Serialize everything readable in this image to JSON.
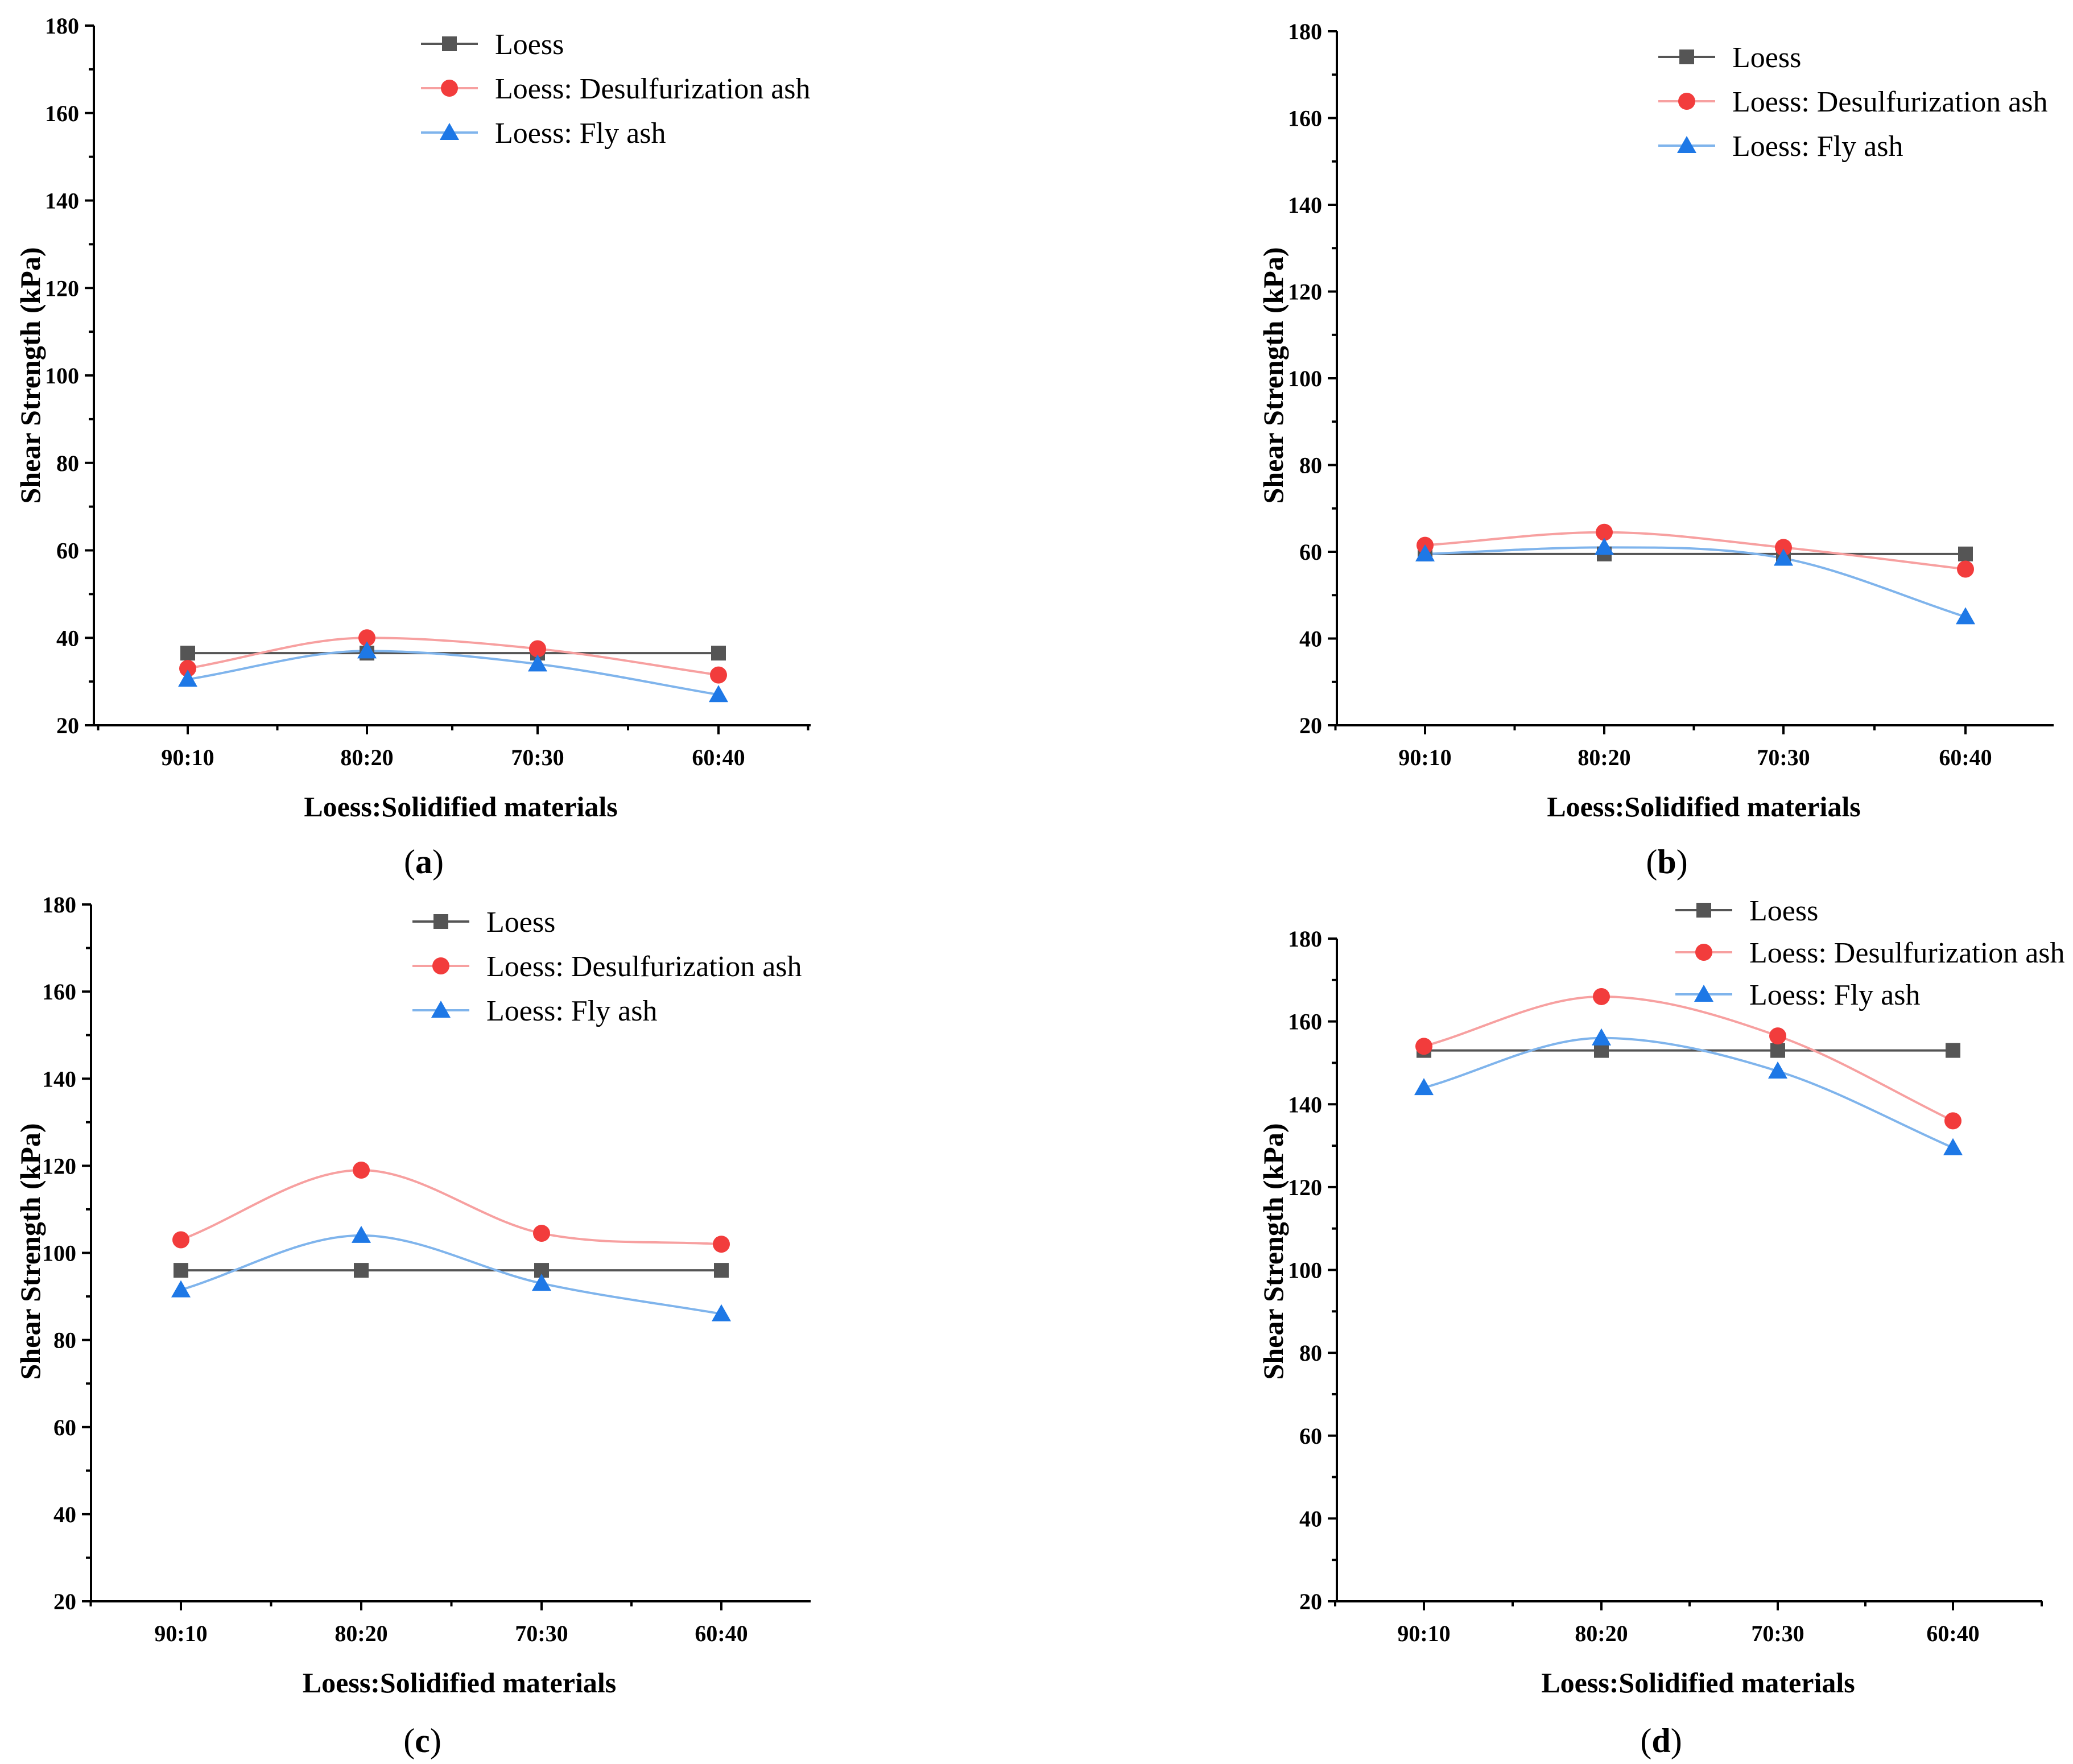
{
  "chart_data": [
    {
      "type": "line",
      "panel_label": "a",
      "categories": [
        "90:10",
        "80:20",
        "70:30",
        "60:40"
      ],
      "xlabel": "Loess:Solidified materials",
      "ylabel": "Shear Strength (kPa)",
      "ylim": [
        20,
        180
      ],
      "yticks": [
        20,
        40,
        60,
        80,
        100,
        120,
        140,
        160,
        180
      ],
      "legend_position": "top-right",
      "series": [
        {
          "name": "Loess",
          "color": "#555555",
          "marker": "square",
          "smooth": false,
          "values": [
            36.5,
            36.5,
            36.5,
            36.5
          ]
        },
        {
          "name": "Loess: Desulfurization ash",
          "color": "#f23c3c",
          "line_color": "#f7a0a0",
          "marker": "circle",
          "smooth": true,
          "values": [
            33,
            40,
            37.5,
            31.5
          ]
        },
        {
          "name": "Loess: Fly ash",
          "color": "#1e78e6",
          "line_color": "#7fb4ec",
          "marker": "triangle",
          "smooth": true,
          "values": [
            30.5,
            37,
            34,
            27
          ]
        }
      ]
    },
    {
      "type": "line",
      "panel_label": "b",
      "categories": [
        "90:10",
        "80:20",
        "70:30",
        "60:40"
      ],
      "xlabel": "Loess:Solidified materials",
      "ylabel": "Shear Strength (kPa)",
      "ylim": [
        20,
        180
      ],
      "yticks": [
        20,
        40,
        60,
        80,
        100,
        120,
        140,
        160,
        180
      ],
      "legend_position": "top-right",
      "series": [
        {
          "name": "Loess",
          "color": "#555555",
          "marker": "square",
          "smooth": false,
          "values": [
            59.5,
            59.5,
            59.5,
            59.5
          ]
        },
        {
          "name": "Loess: Desulfurization ash",
          "color": "#f23c3c",
          "line_color": "#f7a0a0",
          "marker": "circle",
          "smooth": true,
          "values": [
            61.5,
            64.5,
            61,
            56
          ]
        },
        {
          "name": "Loess: Fly ash",
          "color": "#1e78e6",
          "line_color": "#7fb4ec",
          "marker": "triangle",
          "smooth": true,
          "values": [
            59.5,
            61,
            58.5,
            45
          ]
        }
      ]
    },
    {
      "type": "line",
      "panel_label": "c",
      "categories": [
        "90:10",
        "80:20",
        "70:30",
        "60:40"
      ],
      "xlabel": "Loess:Solidified materials",
      "ylabel": "Shear Strength (kPa)",
      "ylim": [
        20,
        180
      ],
      "yticks": [
        20,
        40,
        60,
        80,
        100,
        120,
        140,
        160,
        180
      ],
      "legend_position": "top-right",
      "series": [
        {
          "name": "Loess",
          "color": "#555555",
          "marker": "square",
          "smooth": false,
          "values": [
            96,
            96,
            96,
            96
          ]
        },
        {
          "name": "Loess: Desulfurization ash",
          "color": "#f23c3c",
          "line_color": "#f7a0a0",
          "marker": "circle",
          "smooth": true,
          "values": [
            103,
            119,
            104.5,
            102
          ]
        },
        {
          "name": "Loess: Fly ash",
          "color": "#1e78e6",
          "line_color": "#7fb4ec",
          "marker": "triangle",
          "smooth": true,
          "values": [
            91.5,
            104,
            93,
            86
          ]
        }
      ]
    },
    {
      "type": "line",
      "panel_label": "d",
      "categories": [
        "90:10",
        "80:20",
        "70:30",
        "60:40"
      ],
      "xlabel": "Loess:Solidified materials",
      "ylabel": "Shear Strength (kPa)",
      "ylim": [
        20,
        180
      ],
      "yticks": [
        20,
        40,
        60,
        80,
        100,
        120,
        140,
        160,
        180
      ],
      "legend_position": "top-right",
      "series": [
        {
          "name": "Loess",
          "color": "#555555",
          "marker": "square",
          "smooth": false,
          "values": [
            153,
            153,
            153,
            153
          ]
        },
        {
          "name": "Loess: Desulfurization ash",
          "color": "#f23c3c",
          "line_color": "#f7a0a0",
          "marker": "circle",
          "smooth": true,
          "values": [
            154,
            166,
            156.5,
            136
          ]
        },
        {
          "name": "Loess: Fly ash",
          "color": "#1e78e6",
          "line_color": "#7fb4ec",
          "marker": "triangle",
          "smooth": true,
          "values": [
            144,
            156,
            148,
            129.5
          ]
        }
      ]
    }
  ]
}
